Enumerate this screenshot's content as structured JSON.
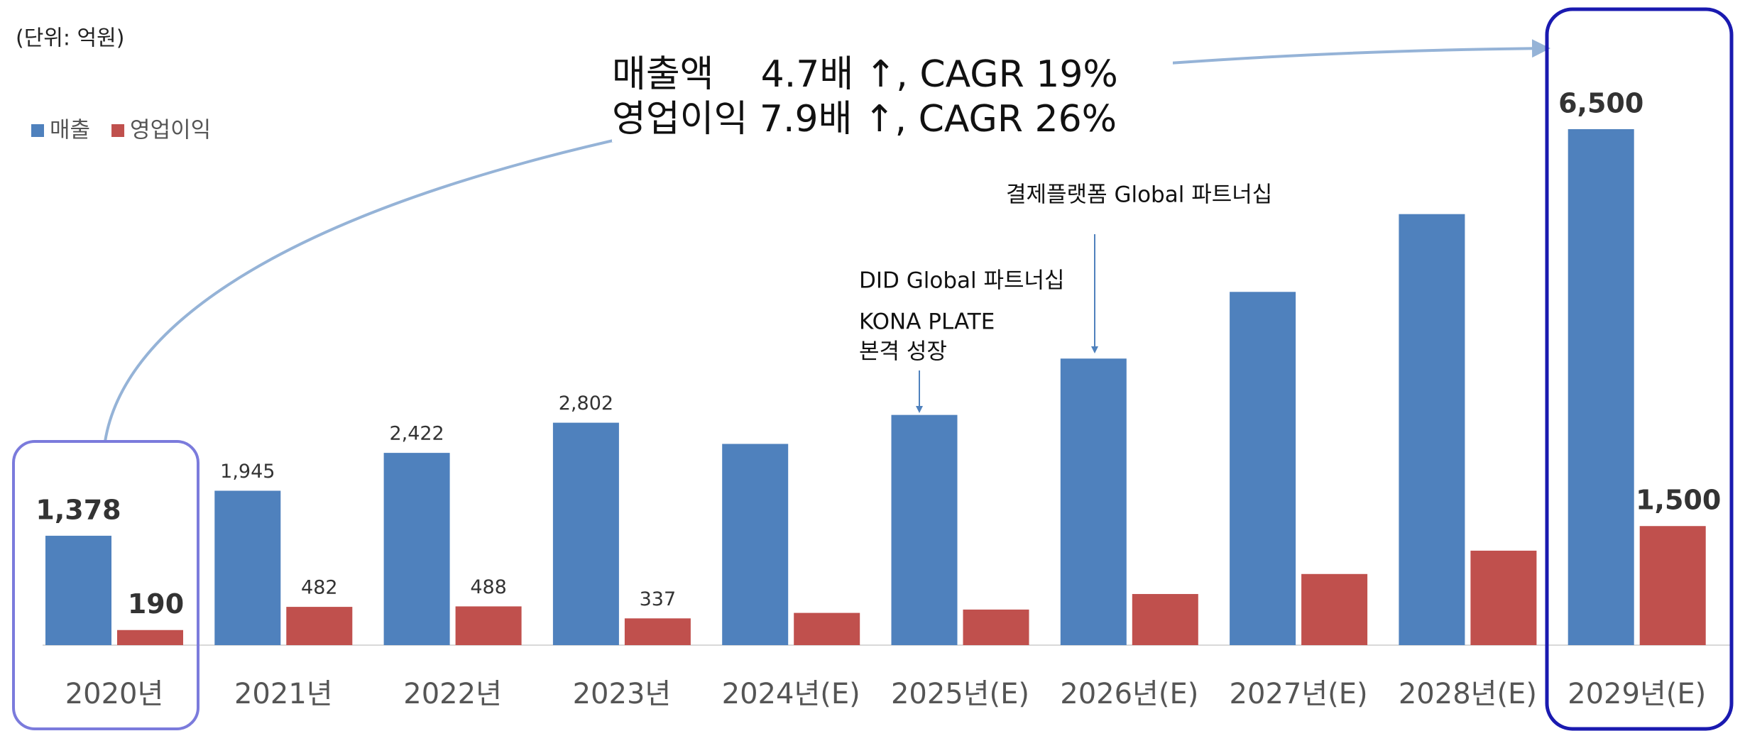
{
  "chart_data": {
    "type": "bar",
    "title": "(단위: 억원)",
    "headline": [
      "매출액    4.7배 ↑, CAGR 19%",
      "영업이익 7.9배 ↑, CAGR 26%"
    ],
    "callouts": [
      {
        "lines": [
          "결제플랫폼 Global 파트너십"
        ]
      },
      {
        "lines": [
          "DID Global 파트너십",
          "KONA PLATE",
          "본격 성장"
        ]
      }
    ],
    "categories": [
      "2020년",
      "2021년",
      "2022년",
      "2023년",
      "2024년(E)",
      "2025년(E)",
      "2026년(E)",
      "2027년(E)",
      "2028년(E)",
      "2029년(E)"
    ],
    "series": [
      {
        "name": "매출",
        "color": "#4f81bd",
        "values": [
          1378,
          1945,
          2422,
          2802,
          2535,
          2900,
          3610,
          4450,
          5430,
          6500
        ],
        "value_labels": [
          "1,378",
          "1,945",
          "2,422",
          "2,802",
          null,
          null,
          null,
          null,
          null,
          "6,500"
        ]
      },
      {
        "name": "영업이익",
        "color": "#c0504d",
        "values": [
          190,
          482,
          488,
          337,
          406,
          448,
          644,
          896,
          1190,
          1500
        ],
        "value_labels": [
          "190",
          "482",
          "488",
          "337",
          null,
          null,
          null,
          null,
          null,
          "1,500"
        ]
      }
    ]
  }
}
